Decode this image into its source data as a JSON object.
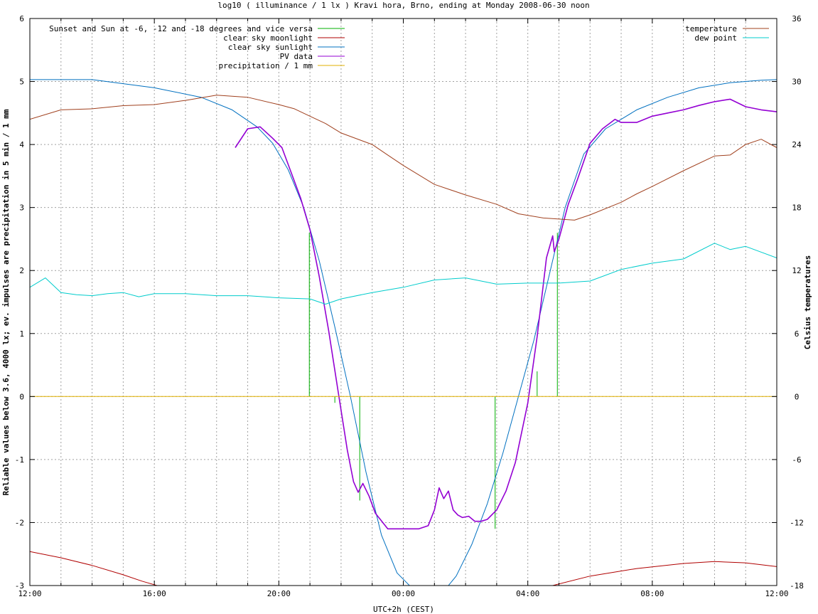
{
  "chart_data": {
    "type": "line",
    "title": "log10 ( illuminance / 1 lx ) Kravi hora, Brno, ending at Monday 2008-06-30 noon",
    "xlabel": "UTC+2h (CEST)",
    "ylabel": "Reliable values below 3.6, 4000 lx; ev. impulses are precipitation in 5 min / 1 mm",
    "y2label": "Celsius temperatures",
    "xlim": [
      0,
      24
    ],
    "ylim": [
      -3,
      6
    ],
    "y2lim": [
      -18,
      36
    ],
    "grid": true,
    "legend_left_position": "top-left",
    "legend_right_position": "top-right",
    "x_ticks": [
      {
        "v": 0,
        "label": "12:00"
      },
      {
        "v": 4,
        "label": "16:00"
      },
      {
        "v": 8,
        "label": "20:00"
      },
      {
        "v": 12,
        "label": "00:00"
      },
      {
        "v": 16,
        "label": "04:00"
      },
      {
        "v": 20,
        "label": "08:00"
      },
      {
        "v": 24,
        "label": "12:00"
      }
    ],
    "x_minor_ticks": [
      1,
      2,
      3,
      5,
      6,
      7,
      9,
      10,
      11,
      13,
      14,
      15,
      17,
      18,
      19,
      21,
      22,
      23
    ],
    "y_ticks": [
      {
        "v": -3,
        "label": "-3"
      },
      {
        "v": -2,
        "label": "-2"
      },
      {
        "v": -1,
        "label": "-1"
      },
      {
        "v": 0,
        "label": "0"
      },
      {
        "v": 1,
        "label": "1"
      },
      {
        "v": 2,
        "label": "2"
      },
      {
        "v": 3,
        "label": "3"
      },
      {
        "v": 4,
        "label": "4"
      },
      {
        "v": 5,
        "label": "5"
      },
      {
        "v": 6,
        "label": "6"
      }
    ],
    "y2_ticks": [
      {
        "v": -18,
        "label": "-18"
      },
      {
        "v": -12,
        "label": "-12"
      },
      {
        "v": -6,
        "label": "-6"
      },
      {
        "v": 0,
        "label": "0"
      },
      {
        "v": 6,
        "label": "6"
      },
      {
        "v": 12,
        "label": "12"
      },
      {
        "v": 18,
        "label": "18"
      },
      {
        "v": 24,
        "label": "24"
      },
      {
        "v": 30,
        "label": "30"
      },
      {
        "v": 36,
        "label": "36"
      }
    ],
    "series": [
      {
        "name": "Sunset and Sun at -6, -12 and -18 degrees and vice versa",
        "axis": "y",
        "style": "impulses",
        "color": "#00b000",
        "impulses": [
          {
            "x": 8.98,
            "y0": 0,
            "y1": 2.6
          },
          {
            "x": 9.8,
            "y0": 0,
            "y1": -0.1
          },
          {
            "x": 10.6,
            "y0": 0,
            "y1": -1.65
          },
          {
            "x": 14.95,
            "y0": 0,
            "y1": -2.1
          },
          {
            "x": 16.3,
            "y0": 0,
            "y1": 0.4
          },
          {
            "x": 16.95,
            "y0": 0,
            "y1": 2.6
          }
        ]
      },
      {
        "name": "clear sky moonlight",
        "axis": "y",
        "color": "#b00000",
        "x": [
          0,
          1,
          2,
          3,
          3.6,
          4.3,
          16.8,
          18,
          19.5,
          21,
          22,
          23,
          24
        ],
        "y": [
          -2.46,
          -2.56,
          -2.68,
          -2.83,
          -2.93,
          -3.03,
          -3.0,
          -2.85,
          -2.73,
          -2.65,
          -2.62,
          -2.64,
          -2.7
        ]
      },
      {
        "name": "clear sky sunlight",
        "axis": "y",
        "color": "#0070c0",
        "x": [
          0,
          2,
          4,
          5.5,
          6.5,
          7.3,
          7.8,
          8.3,
          8.8,
          9.3,
          9.8,
          10.3,
          10.8,
          11.3,
          11.8,
          12.5,
          13.2,
          13.7,
          14.2,
          14.7,
          15.2,
          15.7,
          16.2,
          16.7,
          17.2,
          17.8,
          18.5,
          19.5,
          20.5,
          21.5,
          22.5,
          23.5,
          24
        ],
        "y": [
          5.03,
          5.03,
          4.9,
          4.75,
          4.55,
          4.28,
          4.02,
          3.6,
          3.0,
          2.15,
          1.1,
          0.0,
          -1.2,
          -2.2,
          -2.8,
          -3.15,
          -3.15,
          -2.85,
          -2.35,
          -1.7,
          -0.9,
          0.0,
          0.9,
          1.95,
          3.0,
          3.85,
          4.25,
          4.55,
          4.75,
          4.9,
          4.98,
          5.02,
          5.03
        ]
      },
      {
        "name": "PV data",
        "axis": "y",
        "color": "#9400d3",
        "x": [
          6.6,
          7.0,
          7.4,
          7.8,
          8.1,
          8.4,
          8.7,
          9.0,
          9.3,
          9.6,
          9.9,
          10.2,
          10.4,
          10.55,
          10.7,
          10.9,
          11.1,
          11.5,
          12.0,
          12.5,
          12.8,
          13.0,
          13.15,
          13.3,
          13.45,
          13.6,
          13.75,
          13.9,
          14.1,
          14.3,
          14.5,
          14.7,
          15.0,
          15.3,
          15.6,
          16.0,
          16.3,
          16.6,
          16.8,
          16.85,
          17.0,
          17.3,
          17.6,
          18.0,
          18.4,
          18.8,
          19.0,
          19.5,
          20.0,
          20.5,
          21.0,
          21.5,
          22.0,
          22.5,
          23.0,
          23.5,
          24.0
        ],
        "y": [
          3.95,
          4.25,
          4.28,
          4.1,
          3.95,
          3.55,
          3.15,
          2.65,
          1.9,
          1.05,
          0.1,
          -0.85,
          -1.35,
          -1.52,
          -1.38,
          -1.58,
          -1.85,
          -2.1,
          -2.1,
          -2.1,
          -2.05,
          -1.8,
          -1.45,
          -1.62,
          -1.5,
          -1.8,
          -1.88,
          -1.92,
          -1.9,
          -1.98,
          -1.98,
          -1.95,
          -1.8,
          -1.5,
          -1.05,
          -0.1,
          0.95,
          2.2,
          2.55,
          2.3,
          2.5,
          3.05,
          3.45,
          4.02,
          4.25,
          4.4,
          4.35,
          4.35,
          4.45,
          4.5,
          4.55,
          4.62,
          4.68,
          4.72,
          4.6,
          4.55,
          4.52
        ]
      },
      {
        "name": "precipitation / 1 mm",
        "axis": "y",
        "color": "#e0b000",
        "x": [
          0,
          24
        ],
        "y": [
          0,
          0
        ]
      },
      {
        "name": "temperature",
        "axis": "y2",
        "color": "#a0401e",
        "x": [
          0,
          1,
          2,
          3,
          4,
          5,
          6,
          7,
          8,
          8.5,
          9,
          9.5,
          10,
          11,
          11.5,
          12,
          13,
          14,
          15,
          15.7,
          16.5,
          17,
          17.5,
          18,
          19,
          19.5,
          20,
          21,
          22,
          22.5,
          23,
          23.5,
          24
        ],
        "y": [
          26.4,
          27.3,
          27.4,
          27.7,
          27.8,
          28.2,
          28.7,
          28.5,
          27.8,
          27.4,
          26.7,
          26.0,
          25.1,
          24.0,
          23.0,
          22.0,
          20.2,
          19.2,
          18.3,
          17.4,
          17.0,
          16.9,
          16.8,
          17.3,
          18.5,
          19.3,
          20.0,
          21.5,
          22.9,
          23.0,
          24.0,
          24.5,
          23.7
        ]
      },
      {
        "name": "dew point",
        "axis": "y2",
        "color": "#00cccc",
        "x": [
          0,
          0.5,
          1,
          1.5,
          2,
          2.5,
          3,
          3.5,
          4,
          5,
          6,
          7,
          8,
          9,
          9.5,
          10,
          11,
          12,
          13,
          14,
          15,
          16,
          17,
          18,
          19,
          20,
          21,
          22,
          22.5,
          23,
          24
        ],
        "y": [
          10.4,
          11.3,
          9.9,
          9.7,
          9.6,
          9.8,
          9.9,
          9.5,
          9.8,
          9.8,
          9.6,
          9.6,
          9.4,
          9.3,
          8.8,
          9.3,
          9.9,
          10.4,
          11.1,
          11.3,
          10.7,
          10.8,
          10.8,
          11.0,
          12.1,
          12.7,
          13.1,
          14.6,
          14.0,
          14.3,
          13.2
        ]
      }
    ]
  }
}
